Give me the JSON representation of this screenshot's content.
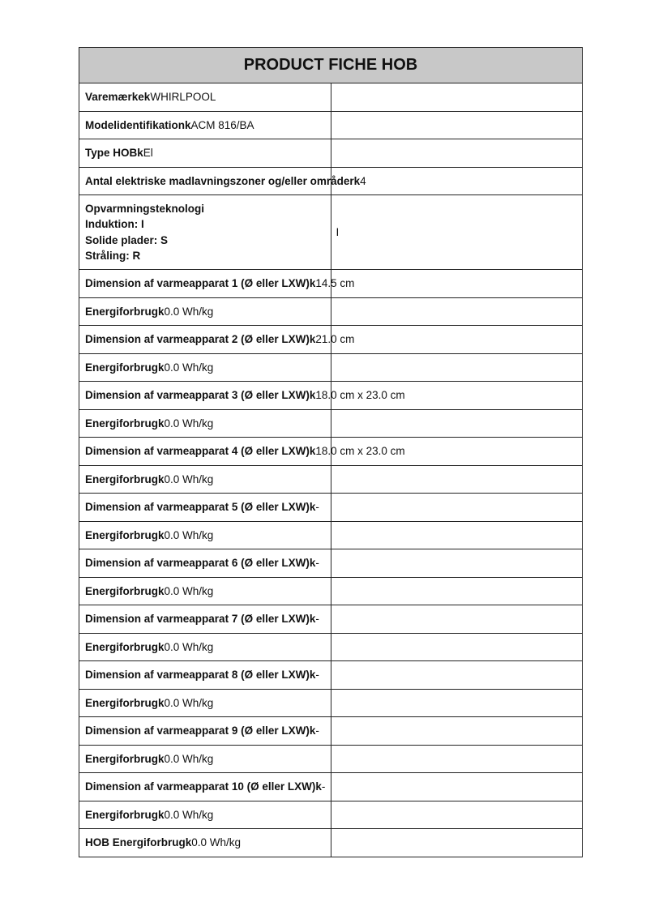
{
  "title": "PRODUCT FICHE HOB",
  "rows": [
    {
      "label": "Varemærkek",
      "value": "WHIRLPOOL",
      "right": ""
    },
    {
      "label": "Modelidentifikationk",
      "value": "ACM 816/BA",
      "right": ""
    },
    {
      "label": "Type HOBk",
      "value": "El",
      "right": ""
    },
    {
      "label": "Antal elektriske madlavningszoner og/eller områderk",
      "value": "4",
      "right": ""
    }
  ],
  "tech": {
    "lines": [
      "Opvarmningsteknologi",
      "Induktion: I",
      "Solide plader: S",
      "Stråling: R"
    ],
    "value": "I"
  },
  "rows2": [
    {
      "label": "Dimension af varmeapparat 1 (Ø eller LXW)k",
      "value": "14.5 cm"
    },
    {
      "label": "Energiforbrugk",
      "value": "0.0 Wh/kg"
    },
    {
      "label": "Dimension af varmeapparat 2 (Ø eller LXW)k",
      "value": "21.0 cm"
    },
    {
      "label": "Energiforbrugk",
      "value": "0.0 Wh/kg"
    },
    {
      "label": "Dimension af varmeapparat 3 (Ø eller LXW)k",
      "value": "18.0 cm x 23.0 cm"
    },
    {
      "label": "Energiforbrugk",
      "value": "0.0 Wh/kg"
    },
    {
      "label": "Dimension af varmeapparat 4 (Ø eller LXW)k",
      "value": "18.0 cm x 23.0 cm"
    },
    {
      "label": "Energiforbrugk",
      "value": "0.0 Wh/kg"
    },
    {
      "label": "Dimension af varmeapparat 5 (Ø eller LXW)k",
      "value": "-"
    },
    {
      "label": "Energiforbrugk",
      "value": "0.0 Wh/kg"
    },
    {
      "label": "Dimension af varmeapparat 6 (Ø eller LXW)k",
      "value": "-"
    },
    {
      "label": "Energiforbrugk",
      "value": "0.0 Wh/kg"
    },
    {
      "label": "Dimension af varmeapparat 7 (Ø eller LXW)k",
      "value": "-"
    },
    {
      "label": "Energiforbrugk",
      "value": "0.0 Wh/kg"
    },
    {
      "label": "Dimension af varmeapparat 8 (Ø eller LXW)k",
      "value": "-"
    },
    {
      "label": "Energiforbrugk",
      "value": "0.0 Wh/kg"
    },
    {
      "label": "Dimension af varmeapparat 9 (Ø eller LXW)k",
      "value": "-"
    },
    {
      "label": "Energiforbrugk",
      "value": "0.0 Wh/kg"
    },
    {
      "label": "Dimension af varmeapparat 10 (Ø eller LXW)k",
      "value": "-"
    },
    {
      "label": "Energiforbrugk",
      "value": "0.0 Wh/kg"
    },
    {
      "label": "HOB Energiforbrugk",
      "value": "0.0 Wh/kg"
    }
  ]
}
